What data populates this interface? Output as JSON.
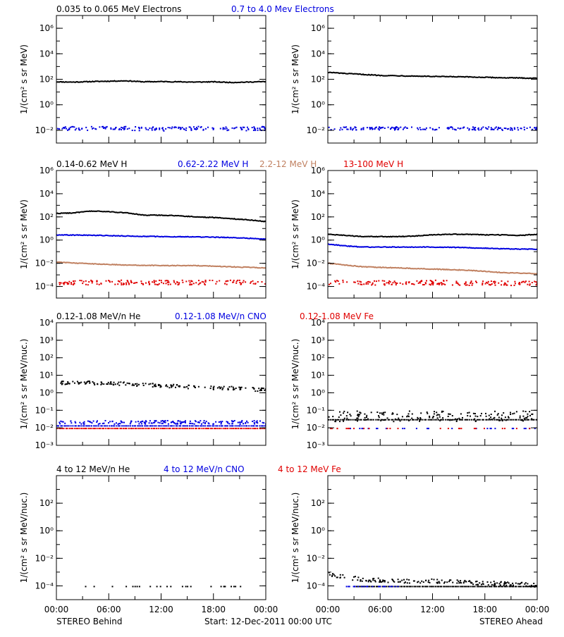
{
  "figure": {
    "time_ticks": [
      "00:00",
      "06:00",
      "12:00",
      "18:00",
      "00:00"
    ],
    "left_footer": "STEREO Behind",
    "center_footer": "Start: 12-Dec-2011 00:00 UTC",
    "right_footer": "STEREO Ahead",
    "colors": {
      "black": "#000000",
      "blue": "#0000e0",
      "tan": "#c08060",
      "red": "#e00000"
    }
  },
  "chart_data": [
    {
      "type": "scatter",
      "panel": "electrons-behind",
      "title": "",
      "xlabel": "",
      "ylabel": "1/(cm² s sr MeV)",
      "xlim": [
        0,
        24
      ],
      "ylim": [
        -3,
        7
      ],
      "log_y": true,
      "ytick_values": [
        -2,
        0,
        2,
        4,
        6
      ],
      "ytick_labels": [
        "10⁻²",
        "10⁰",
        "10²",
        "10⁴",
        "10⁶"
      ],
      "legend": [
        {
          "name": "0.035 to 0.065 MeV Electrons",
          "color": "#000000"
        },
        {
          "name": "0.7 to 4.0 Mev Electrons",
          "color": "#0000e0"
        }
      ],
      "series": [
        {
          "name": "0.035 to 0.065 MeV Electrons",
          "color": "#000000",
          "style": "line",
          "x": [
            0,
            2,
            4,
            6,
            8,
            10,
            12,
            14,
            16,
            18,
            20,
            22,
            24
          ],
          "y": [
            1.8,
            1.78,
            1.82,
            1.85,
            1.88,
            1.8,
            1.82,
            1.8,
            1.78,
            1.8,
            1.75,
            1.78,
            1.82
          ]
        },
        {
          "name": "0.7 to 4.0 Mev Electrons",
          "color": "#0000e0",
          "style": "dots",
          "x": [
            0,
            4,
            8,
            12,
            16,
            20,
            24
          ],
          "y": [
            -1.8,
            -1.8,
            -1.8,
            -1.85,
            -1.8,
            -1.85,
            -1.8
          ],
          "jitter": 0.15
        }
      ]
    },
    {
      "type": "scatter",
      "panel": "electrons-ahead",
      "title": "",
      "xlabel": "",
      "ylabel": "1/(cm² s sr MeV)",
      "xlim": [
        0,
        24
      ],
      "ylim": [
        -3,
        7
      ],
      "log_y": true,
      "ytick_values": [
        -2,
        0,
        2,
        4,
        6
      ],
      "ytick_labels": [
        "10⁻²",
        "10⁰",
        "10²",
        "10⁴",
        "10⁶"
      ],
      "series": [
        {
          "name": "0.035 to 0.065 MeV Electrons",
          "color": "#000000",
          "style": "line",
          "x": [
            0,
            2,
            4,
            6,
            8,
            10,
            12,
            14,
            16,
            18,
            20,
            22,
            24
          ],
          "y": [
            2.55,
            2.45,
            2.38,
            2.3,
            2.28,
            2.25,
            2.22,
            2.2,
            2.18,
            2.15,
            2.12,
            2.1,
            2.08
          ]
        },
        {
          "name": "0.7 to 4.0 Mev Electrons",
          "color": "#0000e0",
          "style": "dots",
          "x": [
            0,
            4,
            8,
            12,
            16,
            20,
            24
          ],
          "y": [
            -1.8,
            -1.8,
            -1.8,
            -1.82,
            -1.8,
            -1.82,
            -1.8
          ],
          "jitter": 0.12
        }
      ]
    },
    {
      "type": "scatter",
      "panel": "protons-behind",
      "title": "",
      "xlabel": "",
      "ylabel": "1/(cm² s sr MeV)",
      "xlim": [
        0,
        24
      ],
      "ylim": [
        -5,
        6
      ],
      "log_y": true,
      "ytick_values": [
        -4,
        -2,
        0,
        2,
        4,
        6
      ],
      "ytick_labels": [
        "10⁻⁴",
        "10⁻²",
        "10⁰",
        "10²",
        "10⁴",
        "10⁶"
      ],
      "legend": [
        {
          "name": "0.14-0.62 MeV H",
          "color": "#000000"
        },
        {
          "name": "0.62-2.22 MeV H",
          "color": "#0000e0"
        },
        {
          "name": "2.2-12 MeV H",
          "color": "#c08060"
        },
        {
          "name": "13-100 MeV H",
          "color": "#e00000"
        }
      ],
      "series": [
        {
          "name": "0.14-0.62 MeV H",
          "color": "#000000",
          "style": "line",
          "x": [
            0,
            2,
            4,
            6,
            8,
            10,
            12,
            14,
            16,
            18,
            20,
            22,
            24
          ],
          "y": [
            2.3,
            2.35,
            2.5,
            2.45,
            2.35,
            2.15,
            2.15,
            2.1,
            2.0,
            1.95,
            1.85,
            1.75,
            1.6
          ]
        },
        {
          "name": "0.62-2.22 MeV H",
          "color": "#0000e0",
          "style": "line",
          "x": [
            0,
            4,
            8,
            12,
            16,
            20,
            24
          ],
          "y": [
            0.45,
            0.42,
            0.35,
            0.3,
            0.28,
            0.22,
            0.1
          ]
        },
        {
          "name": "2.2-12 MeV H",
          "color": "#c08060",
          "style": "line",
          "x": [
            0,
            4,
            8,
            12,
            16,
            20,
            24
          ],
          "y": [
            -1.9,
            -2.05,
            -2.15,
            -2.2,
            -2.2,
            -2.3,
            -2.4
          ]
        },
        {
          "name": "13-100 MeV H",
          "color": "#e00000",
          "style": "dots",
          "x": [
            0,
            4,
            8,
            12,
            16,
            20,
            24
          ],
          "y": [
            -3.6,
            -3.6,
            -3.6,
            -3.6,
            -3.6,
            -3.6,
            -3.6
          ],
          "jitter": 0.2
        }
      ]
    },
    {
      "type": "scatter",
      "panel": "protons-ahead",
      "title": "",
      "xlabel": "",
      "ylabel": "1/(cm² s sr MeV)",
      "xlim": [
        0,
        24
      ],
      "ylim": [
        -5,
        6
      ],
      "log_y": true,
      "ytick_values": [
        -4,
        -2,
        0,
        2,
        4,
        6
      ],
      "ytick_labels": [
        "10⁻⁴",
        "10⁻²",
        "10⁰",
        "10²",
        "10⁴",
        "10⁶"
      ],
      "series": [
        {
          "name": "0.14-0.62 MeV H",
          "color": "#000000",
          "style": "line",
          "x": [
            0,
            2,
            4,
            6,
            8,
            10,
            12,
            14,
            16,
            18,
            20,
            22,
            24
          ],
          "y": [
            0.5,
            0.4,
            0.3,
            0.3,
            0.3,
            0.35,
            0.45,
            0.5,
            0.5,
            0.45,
            0.45,
            0.4,
            0.5
          ]
        },
        {
          "name": "0.62-2.22 MeV H",
          "color": "#0000e0",
          "style": "line",
          "x": [
            0,
            2,
            4,
            8,
            12,
            16,
            20,
            24
          ],
          "y": [
            -0.35,
            -0.5,
            -0.6,
            -0.6,
            -0.6,
            -0.65,
            -0.75,
            -0.8
          ]
        },
        {
          "name": "2.2-12 MeV H",
          "color": "#c08060",
          "style": "line",
          "x": [
            0,
            4,
            8,
            12,
            16,
            20,
            24
          ],
          "y": [
            -2.0,
            -2.3,
            -2.4,
            -2.5,
            -2.6,
            -2.8,
            -2.9
          ]
        },
        {
          "name": "13-100 MeV H",
          "color": "#e00000",
          "style": "dots",
          "x": [
            0,
            4,
            8,
            12,
            16,
            20,
            24
          ],
          "y": [
            -3.6,
            -3.6,
            -3.65,
            -3.6,
            -3.65,
            -3.65,
            -3.7
          ],
          "jitter": 0.2
        }
      ]
    },
    {
      "type": "scatter",
      "panel": "heavy-low-behind",
      "title": "",
      "xlabel": "",
      "ylabel": "1/(cm² s sr MeV/nuc.)",
      "xlim": [
        0,
        24
      ],
      "ylim": [
        -3,
        4
      ],
      "log_y": true,
      "ytick_values": [
        -3,
        -2,
        -1,
        0,
        1,
        2,
        3,
        4
      ],
      "ytick_labels": [
        "10⁻³",
        "10⁻²",
        "10⁻¹",
        "10⁰",
        "10¹",
        "10²",
        "10³",
        "10⁴"
      ],
      "legend": [
        {
          "name": "0.12-1.08 MeV/n He",
          "color": "#000000"
        },
        {
          "name": "0.12-1.08 MeV/n CNO",
          "color": "#0000e0"
        },
        {
          "name": "0.12-1.08 MeV Fe",
          "color": "#e00000"
        }
      ],
      "series": [
        {
          "name": "0.12-1.08 MeV/n He",
          "color": "#000000",
          "style": "dots",
          "x": [
            0,
            4,
            8,
            12,
            16,
            20,
            24
          ],
          "y": [
            0.6,
            0.6,
            0.55,
            0.45,
            0.35,
            0.3,
            0.2
          ],
          "jitter": 0.1
        },
        {
          "name": "0.12-1.08 MeV/n CNO",
          "color": "#0000e0",
          "style": "dots",
          "x": [
            0,
            24
          ],
          "y": [
            -1.65,
            -1.65
          ],
          "jitter": 0.1
        },
        {
          "name": "0.12-1.08 MeV Fe",
          "color": "#e00000",
          "style": "band",
          "x": [
            0,
            24
          ],
          "y": [
            -2.0,
            -2.0
          ]
        },
        {
          "name": "0.12-1.08 MeV/n CNO",
          "color": "#0000e0",
          "style": "band",
          "x": [
            0,
            24
          ],
          "y": [
            -1.85,
            -1.85
          ]
        }
      ]
    },
    {
      "type": "scatter",
      "panel": "heavy-low-ahead",
      "title": "",
      "xlabel": "",
      "ylabel": "1/(cm² s sr MeV/nuc.)",
      "xlim": [
        0,
        24
      ],
      "ylim": [
        -3,
        4
      ],
      "log_y": true,
      "ytick_values": [
        -3,
        -2,
        -1,
        0,
        1,
        2,
        3,
        4
      ],
      "ytick_labels": [
        "10⁻³",
        "10⁻²",
        "10⁻¹",
        "10⁰",
        "10¹",
        "10²",
        "10³",
        "10⁴"
      ],
      "series": [
        {
          "name": "0.12-1.08 MeV/n He",
          "color": "#000000",
          "style": "dots",
          "x": [
            0,
            24
          ],
          "y": [
            -1.3,
            -1.3
          ],
          "jitter": 0.3
        },
        {
          "name": "0.12-1.08 MeV/n He",
          "color": "#000000",
          "style": "band",
          "x": [
            0,
            24
          ],
          "y": [
            -1.5,
            -1.5
          ]
        },
        {
          "name": "0.12-1.08 MeV/n CNO",
          "color": "#0000e0",
          "style": "sparse",
          "x": [
            0,
            24
          ],
          "y": [
            -2.0,
            -2.0
          ]
        },
        {
          "name": "0.12-1.08 MeV Fe",
          "color": "#e00000",
          "style": "sparse",
          "x": [
            0,
            24
          ],
          "y": [
            -2.0,
            -2.0
          ]
        }
      ]
    },
    {
      "type": "scatter",
      "panel": "heavy-high-behind",
      "title": "",
      "xlabel": "",
      "ylabel": "1/(cm² s sr MeV/nuc.)",
      "xlim": [
        0,
        24
      ],
      "ylim": [
        -5,
        4
      ],
      "log_y": true,
      "ytick_values": [
        -4,
        -2,
        0,
        2
      ],
      "ytick_labels": [
        "10⁻⁴",
        "10⁻²",
        "10⁰",
        "10²"
      ],
      "legend": [
        {
          "name": "4 to 12 MeV/n He",
          "color": "#000000"
        },
        {
          "name": "4 to 12 MeV/n CNO",
          "color": "#0000e0"
        },
        {
          "name": "4 to 12 MeV Fe",
          "color": "#e00000"
        }
      ],
      "series": [
        {
          "name": "4 to 12 MeV/n He",
          "color": "#000000",
          "style": "sparse",
          "x": [
            3,
            22
          ],
          "y": [
            -4.0,
            -4.0
          ]
        }
      ]
    },
    {
      "type": "scatter",
      "panel": "heavy-high-ahead",
      "title": "",
      "xlabel": "",
      "ylabel": "1/(cm² s sr MeV/nuc.)",
      "xlim": [
        0,
        24
      ],
      "ylim": [
        -5,
        4
      ],
      "log_y": true,
      "ytick_values": [
        -4,
        -2,
        0,
        2
      ],
      "ytick_labels": [
        "10⁻⁴",
        "10⁻²",
        "10⁰",
        "10²"
      ],
      "series": [
        {
          "name": "4 to 12 MeV/n He",
          "color": "#000000",
          "style": "dots",
          "x": [
            0,
            2,
            4,
            8,
            12,
            16,
            20,
            24
          ],
          "y": [
            -3.1,
            -3.3,
            -3.5,
            -3.6,
            -3.6,
            -3.7,
            -3.8,
            -3.9
          ],
          "jitter": 0.15
        },
        {
          "name": "4 to 12 MeV/n He",
          "color": "#000000",
          "style": "band",
          "x": [
            3,
            24
          ],
          "y": [
            -4.0,
            -4.0
          ]
        },
        {
          "name": "4 to 12 MeV/n CNO",
          "color": "#0000e0",
          "style": "sparse",
          "x": [
            2,
            8
          ],
          "y": [
            -4.0,
            -4.0
          ]
        }
      ]
    }
  ]
}
